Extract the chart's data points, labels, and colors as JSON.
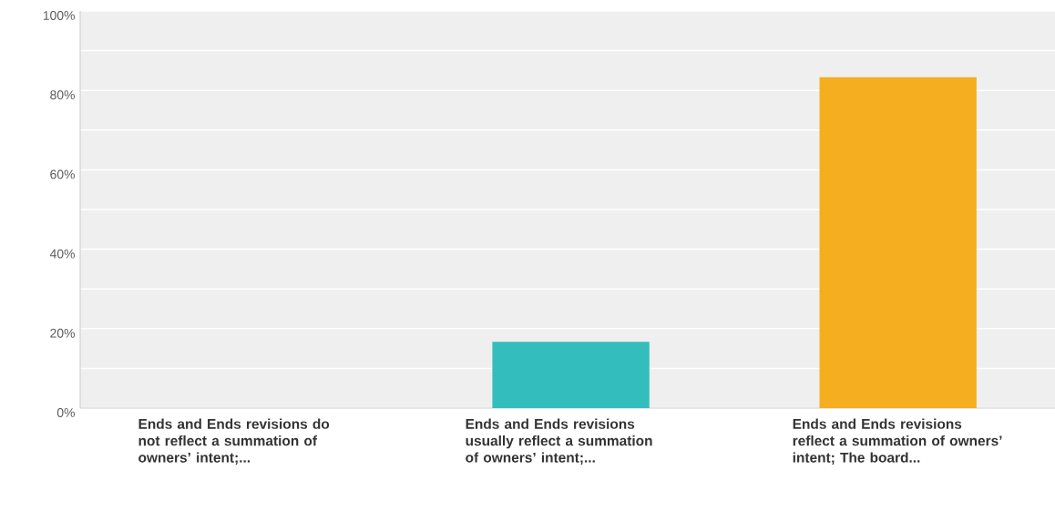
{
  "chart_data": {
    "type": "bar",
    "categories": [
      "Ends and Ends revisions do not reflect a summation of owners’ intent;...",
      "Ends and Ends revisions usually reflect a summation of owners’ intent;...",
      "Ends and Ends revisions reflect a summation of owners’ intent; The board..."
    ],
    "values": [
      0,
      16.7,
      83.3
    ],
    "colors": [
      null,
      "#33bdbd",
      "#f5ae20"
    ],
    "ylim": [
      0,
      100
    ],
    "yticks": [
      {
        "value": 0,
        "label": "0%"
      },
      {
        "value": 10,
        "label": null
      },
      {
        "value": 20,
        "label": "20%"
      },
      {
        "value": 30,
        "label": null
      },
      {
        "value": 40,
        "label": "40%"
      },
      {
        "value": 50,
        "label": null
      },
      {
        "value": 60,
        "label": "60%"
      },
      {
        "value": 70,
        "label": null
      },
      {
        "value": 80,
        "label": "80%"
      },
      {
        "value": 90,
        "label": null
      },
      {
        "value": 100,
        "label": "100%"
      }
    ],
    "grid": "y"
  }
}
